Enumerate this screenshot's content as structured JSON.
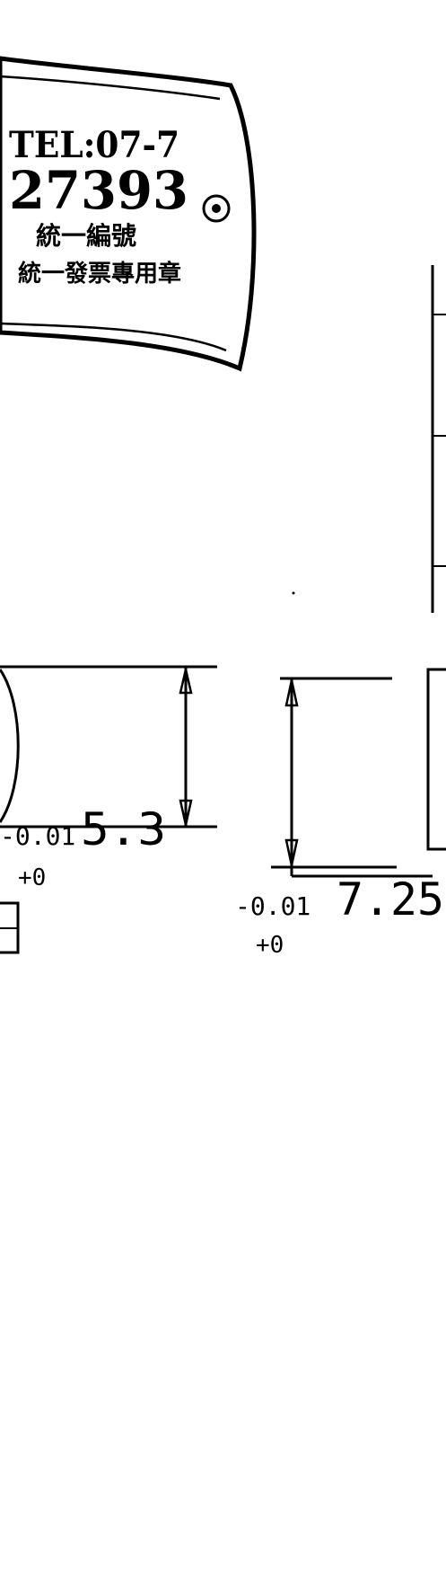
{
  "drawing": {
    "orientation": "rotated-180",
    "dimensions": [
      {
        "id": "height_left",
        "nominal": "5.3",
        "tol_upper": "0.01",
        "tol_lower": "+0",
        "display_main": "5.3",
        "display_tol": "-0.01"
      },
      {
        "id": "height_right",
        "nominal": "7.25",
        "tol_upper": "0.01",
        "tol_lower": "+0",
        "display_main": "7.25",
        "display_tol": "-0.01"
      }
    ],
    "stamp": {
      "lines": [
        "TEL:07-7",
        "27393",
        "統一編號",
        "統一發票專用章"
      ],
      "note": "company seal (rotated)"
    }
  },
  "colors": {
    "ink": "#000000",
    "paper": "#ffffff"
  }
}
